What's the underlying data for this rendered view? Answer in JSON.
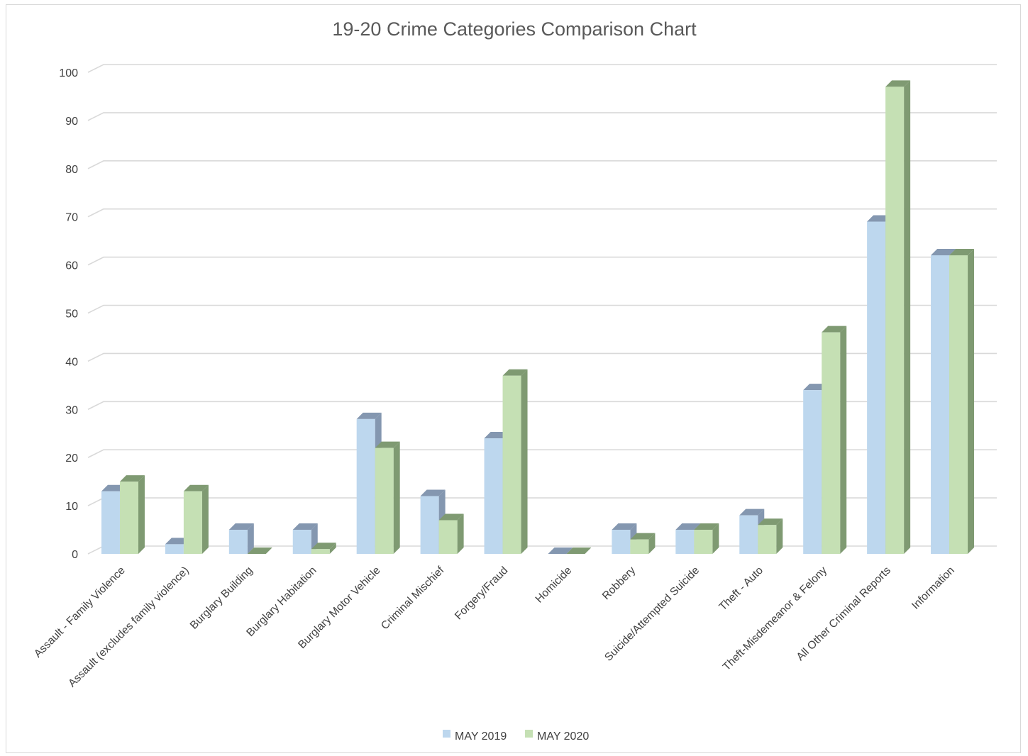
{
  "chart_data": {
    "type": "bar",
    "title": "19-20 Crime Categories Comparison Chart",
    "xlabel": "",
    "ylabel": "",
    "ylim": [
      0,
      100
    ],
    "yticks": [
      0,
      10,
      20,
      30,
      40,
      50,
      60,
      70,
      80,
      90,
      100
    ],
    "grid": true,
    "legend_position": "bottom",
    "categories": [
      "Assault - Family Violence",
      "Assault (excludes family violence)",
      "Burglary Building",
      "Burglary Habitation",
      "Burglary Motor Vehicle",
      "Criminal Mischief",
      "Forgery/Fraud",
      "Homicide",
      "Robbery",
      "Suicide/Attempted Suicide",
      "Theft - Auto",
      "Theft-Misdemeanor &  Felony",
      "All Other Criminal Reports",
      "Information"
    ],
    "series": [
      {
        "name": "MAY 2019",
        "color": "#bdd7ee",
        "side_color": "#8497b0",
        "values": [
          13,
          2,
          5,
          5,
          28,
          12,
          24,
          0,
          5,
          5,
          8,
          34,
          69,
          62
        ]
      },
      {
        "name": "MAY 2020",
        "color": "#c5e0b4",
        "side_color": "#7f9a72",
        "values": [
          15,
          13,
          0,
          1,
          22,
          7,
          37,
          0,
          3,
          5,
          6,
          46,
          97,
          62
        ]
      }
    ]
  }
}
